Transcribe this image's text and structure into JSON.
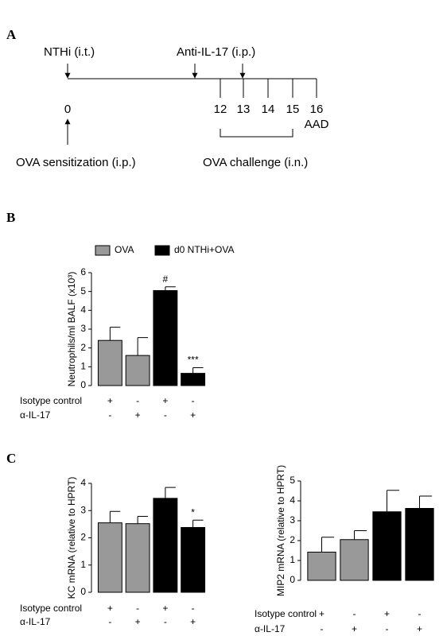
{
  "panel_labels": [
    "A",
    "B",
    "C"
  ],
  "timeline": {
    "top_events": [
      "NTHi (i.t.)",
      "Anti-IL-17 (i.p.)"
    ],
    "days": [
      "0",
      "12",
      "13",
      "14",
      "15",
      "16"
    ],
    "end_label": "AAD",
    "sensitization": "OVA sensitization (i.p.)",
    "challenge": "OVA challenge (i.n.)"
  },
  "chart_data": [
    {
      "type": "bar",
      "ylabel": "Neutrophils/ml BALF (x10³)",
      "legend": [
        {
          "name": "OVA",
          "color": "#999999"
        },
        {
          "name": "d0 NTHi+OVA",
          "color": "#000000"
        }
      ],
      "values": [
        2.4,
        1.6,
        5.05,
        0.65
      ],
      "errors": [
        0.7,
        0.95,
        0.2,
        0.3
      ],
      "colors": [
        "#999999",
        "#999999",
        "#000000",
        "#000000"
      ],
      "annotations": [
        null,
        null,
        "#",
        "***"
      ],
      "ylim": [
        0,
        6
      ],
      "yticks": [
        0,
        1,
        2,
        3,
        4,
        5,
        6
      ],
      "treatments": [
        {
          "name": "Isotype control",
          "signs": [
            "+",
            "-",
            "+",
            "-"
          ]
        },
        {
          "name": "α-IL-17",
          "signs": [
            "-",
            "+",
            "-",
            "+"
          ]
        }
      ]
    },
    {
      "type": "bar",
      "ylabel": "KC mRNA (relative to HPRT)",
      "values": [
        2.55,
        2.52,
        3.45,
        2.38
      ],
      "errors": [
        0.42,
        0.27,
        0.4,
        0.27
      ],
      "colors": [
        "#999999",
        "#999999",
        "#000000",
        "#000000"
      ],
      "annotations": [
        null,
        null,
        null,
        "*"
      ],
      "ylim": [
        0,
        4
      ],
      "yticks": [
        0,
        1,
        2,
        3,
        4
      ],
      "treatments": [
        {
          "name": "Isotype control",
          "signs": [
            "+",
            "-",
            "+",
            "-"
          ]
        },
        {
          "name": "α-IL-17",
          "signs": [
            "-",
            "+",
            "-",
            "+"
          ]
        }
      ]
    },
    {
      "type": "bar",
      "ylabel": "MIP2 mRNA (relative to HPRT)",
      "values": [
        1.42,
        2.05,
        3.45,
        3.62
      ],
      "errors": [
        0.75,
        0.45,
        1.08,
        0.62
      ],
      "colors": [
        "#999999",
        "#999999",
        "#000000",
        "#000000"
      ],
      "annotations": [
        null,
        null,
        null,
        null
      ],
      "ylim": [
        0,
        5
      ],
      "yticks": [
        0,
        1,
        2,
        3,
        4,
        5
      ],
      "treatments": [
        {
          "name": "Isotype control",
          "signs": [
            "+",
            "-",
            "+",
            "-"
          ]
        },
        {
          "name": "α-IL-17",
          "signs": [
            "-",
            "+",
            "-",
            "+"
          ]
        }
      ]
    }
  ]
}
